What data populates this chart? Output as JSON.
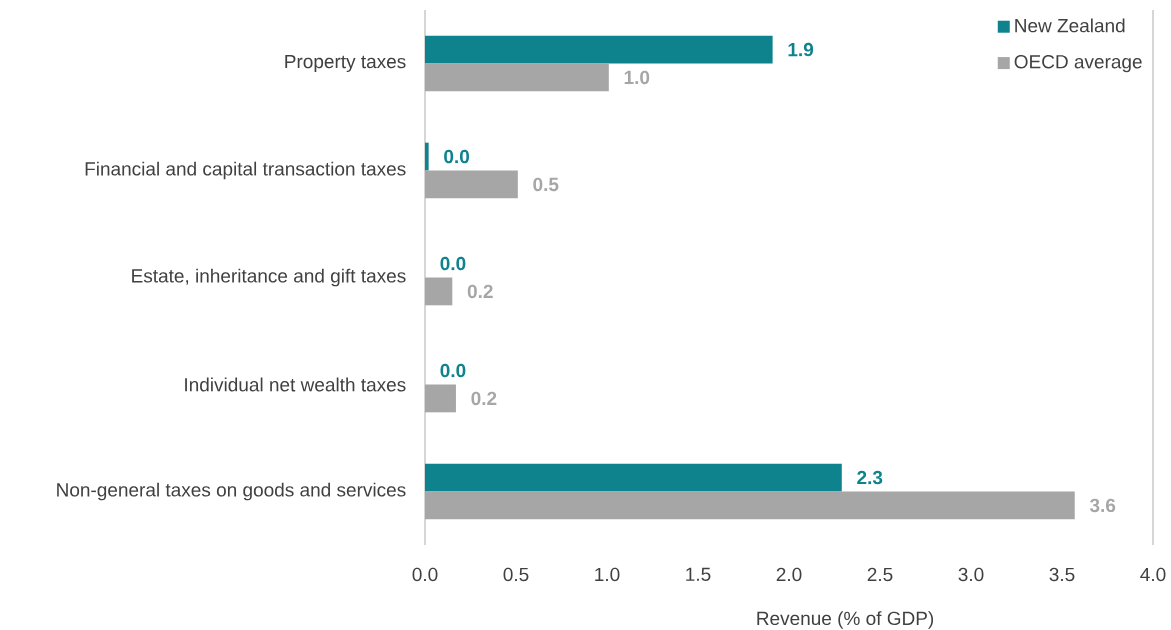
{
  "chart_data": {
    "type": "bar",
    "orientation": "horizontal",
    "xlabel": "Revenue (% of GDP)",
    "categories": [
      "Property taxes",
      "Financial and capital transaction taxes",
      "Estate, inheritance and gift taxes",
      "Individual net wealth taxes",
      "Non-general taxes on goods and services"
    ],
    "series": [
      {
        "name": "New Zealand",
        "color": "#0e838e",
        "values": [
          1.91,
          0.02,
          0,
          0,
          2.29
        ],
        "value_labels": [
          "1.9",
          "0.0",
          "0.0",
          "0.0",
          "2.3"
        ]
      },
      {
        "name": "OECD average",
        "color": "#a6a6a6",
        "values": [
          1.01,
          0.51,
          0.15,
          0.17,
          3.57
        ],
        "value_labels": [
          "1.0",
          "0.5",
          "0.2",
          "0.2",
          "3.6"
        ]
      }
    ],
    "xlim": [
      0,
      4
    ],
    "xticks": [
      {
        "value": 0,
        "label": "0.0"
      },
      {
        "value": 0.5,
        "label": "0.5"
      },
      {
        "value": 1,
        "label": "1.0"
      },
      {
        "value": 1.5,
        "label": "1.5"
      },
      {
        "value": 2,
        "label": "2.0"
      },
      {
        "value": 2.5,
        "label": "2.5"
      },
      {
        "value": 3,
        "label": "3.0"
      },
      {
        "value": 3.5,
        "label": "3.5"
      },
      {
        "value": 4,
        "label": "4.0"
      }
    ],
    "legend": "top right"
  }
}
